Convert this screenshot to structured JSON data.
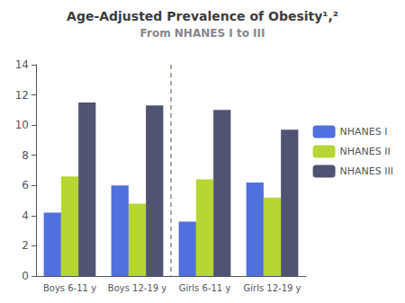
{
  "chart_data": {
    "type": "bar",
    "title": "Age-Adjusted Prevalence of Obesity¹,²",
    "subtitle": "From NHANES I to III",
    "categories": [
      "Boys 6-11 y",
      "Boys 12-19 y",
      "Girls 6-11 y",
      "Girls 12-19 y"
    ],
    "series": [
      {
        "name": "NHANES I",
        "values": [
          4.2,
          6.0,
          3.6,
          6.2
        ]
      },
      {
        "name": "NHANES II",
        "values": [
          6.6,
          4.8,
          6.4,
          5.2
        ]
      },
      {
        "name": "NHANES III",
        "values": [
          11.5,
          11.3,
          11.0,
          9.7
        ]
      }
    ],
    "ylim": [
      0,
      14
    ],
    "yticks": [
      0,
      2,
      4,
      6,
      8,
      10,
      12,
      14
    ],
    "grid": false,
    "legend": "right"
  }
}
